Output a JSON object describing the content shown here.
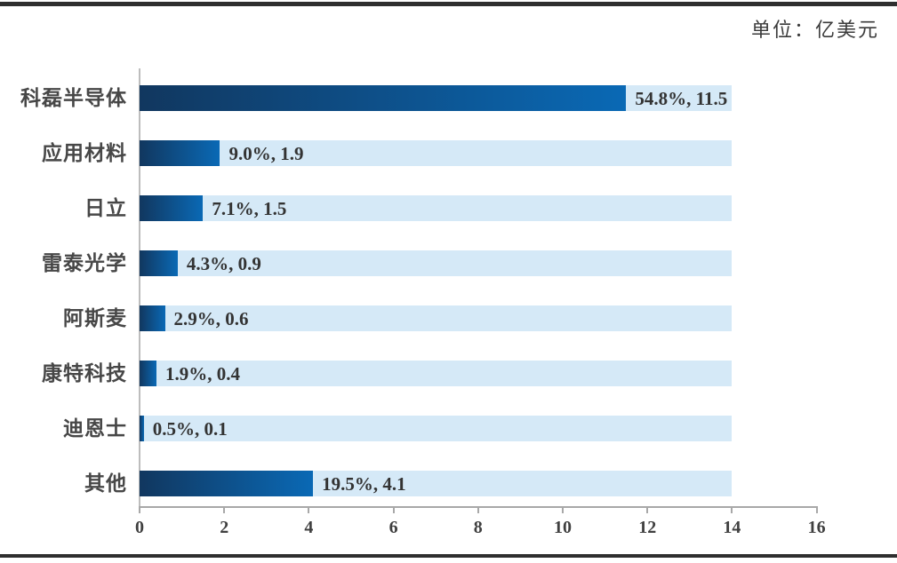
{
  "unit_label": "单位：亿美元",
  "chart_data": {
    "type": "bar",
    "orientation": "horizontal",
    "title": "",
    "xlabel": "",
    "ylabel": "",
    "categories": [
      "科磊半导体",
      "应用材料",
      "日立",
      "雷泰光学",
      "阿斯麦",
      "康特科技",
      "迪恩士",
      "其他"
    ],
    "values": [
      11.5,
      1.9,
      1.5,
      0.9,
      0.6,
      0.4,
      0.1,
      4.1
    ],
    "percentages": [
      "54.8%",
      "9.0%",
      "7.1%",
      "4.3%",
      "2.9%",
      "1.9%",
      "0.5%",
      "19.5%"
    ],
    "data_labels": [
      "54.8%, 11.5",
      "9.0%, 1.9",
      "7.1%, 1.5",
      "4.3%, 0.9",
      "2.9%, 0.6",
      "1.9%, 0.4",
      "0.5%, 0.1",
      "19.5%, 4.1"
    ],
    "x_ticks": [
      0,
      2,
      4,
      6,
      8,
      10,
      12,
      14,
      16
    ],
    "xlim": [
      0,
      16
    ],
    "track_max": 14,
    "grid": false,
    "legend": false,
    "colors": {
      "bar_gradient_start": "#11375f",
      "bar_gradient_end": "#0a69b5",
      "track": "#d5e9f7",
      "axis": "#a8a8a8",
      "y_axis": "#bdbdbd",
      "tick_text": "#3f3f3f",
      "value_text": "#333333",
      "category_text": "#474747",
      "unit_text": "#3a3a3a",
      "rule": "#2f2f2f"
    }
  }
}
